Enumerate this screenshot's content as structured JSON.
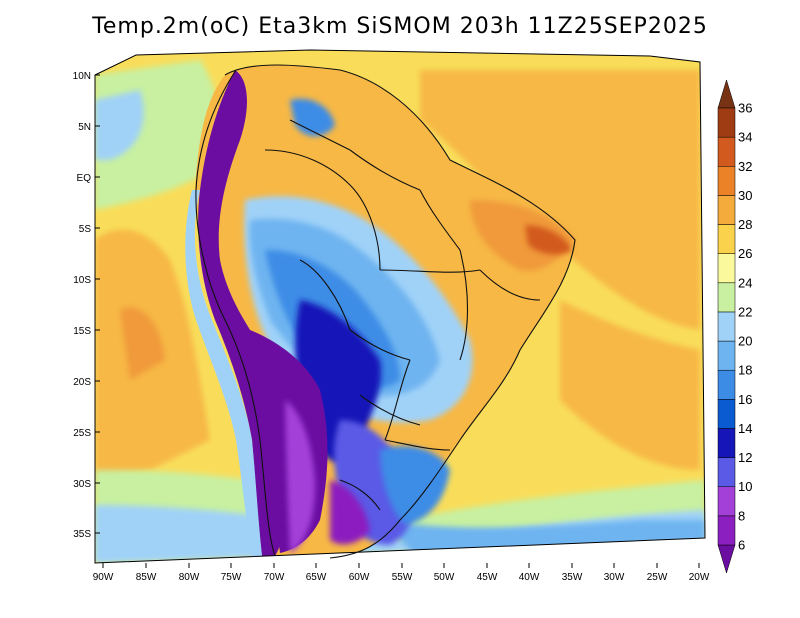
{
  "title": "Temp.2m(oC) Eta3km SiSMOM 203h 11Z25SEP2025",
  "map": {
    "lat_labels": [
      "10N",
      "5N",
      "EQ",
      "5S",
      "10S",
      "15S",
      "20S",
      "25S",
      "30S",
      "35S"
    ],
    "lon_labels": [
      "90W",
      "85W",
      "80W",
      "75W",
      "70W",
      "65W",
      "60W",
      "55W",
      "50W",
      "45W",
      "40W",
      "35W",
      "30W",
      "25W",
      "20W"
    ]
  },
  "colorbar": {
    "levels": [
      "6",
      "8",
      "10",
      "12",
      "14",
      "16",
      "18",
      "20",
      "22",
      "24",
      "26",
      "28",
      "30",
      "32",
      "34",
      "36"
    ],
    "colors": [
      "#6a0da0",
      "#8c1fc0",
      "#a340d8",
      "#5a5ae6",
      "#1616b8",
      "#0a5ad2",
      "#3c8ce6",
      "#6eb4f0",
      "#a0d2f8",
      "#c8f0a0",
      "#fafa9c",
      "#fad24b",
      "#f5aa3c",
      "#eb8228",
      "#d25a1e",
      "#a03c14",
      "#783214"
    ]
  },
  "colors": {
    "ocean": "#f9dd5a",
    "land_warm": "#f7b845",
    "andes": "#6a0da0"
  }
}
